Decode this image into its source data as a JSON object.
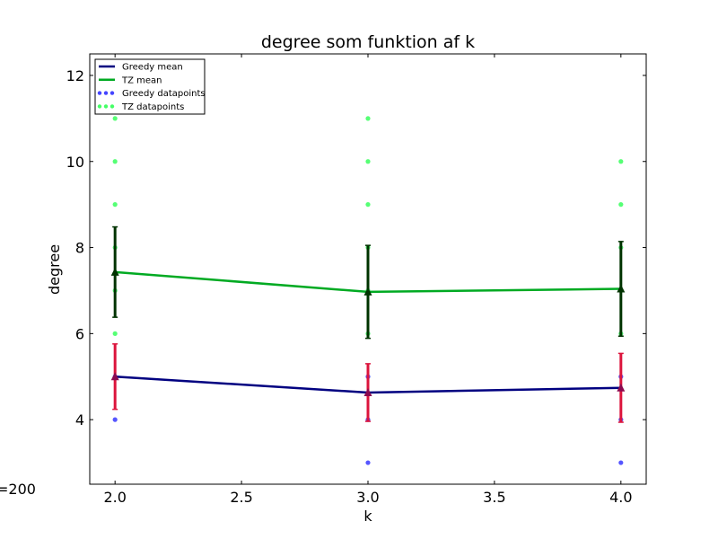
{
  "chart_data": {
    "type": "line",
    "title": "degree som funktion af k",
    "xlabel": "k",
    "ylabel": "degree",
    "xlim": [
      1.9,
      4.1
    ],
    "ylim": [
      2.5,
      12.5
    ],
    "xticks": [
      "2.0",
      "2.5",
      "3.0",
      "3.5",
      "4.0"
    ],
    "yticks": [
      "4",
      "6",
      "8",
      "10",
      "12"
    ],
    "grid": false,
    "legend_position": "top-left",
    "x": [
      2.0,
      3.0,
      4.0
    ],
    "series": [
      {
        "name": "Greedy mean",
        "kind": "mean",
        "color": "#000080",
        "values": [
          5.0,
          4.63,
          4.74
        ],
        "errors": [
          0.76,
          0.67,
          0.8
        ],
        "error_color": "#dc143c",
        "marker_color": "#8b0a50"
      },
      {
        "name": "TZ mean",
        "kind": "mean",
        "color": "#00aa22",
        "values": [
          7.43,
          6.97,
          7.04
        ],
        "errors": [
          1.05,
          1.08,
          1.1
        ],
        "error_color": "#003300",
        "marker_color": "#003300"
      },
      {
        "name": "Greedy datapoints",
        "kind": "scatter",
        "color": "#4444ff",
        "points": [
          [
            2,
            4
          ],
          [
            2,
            5
          ],
          [
            3,
            3
          ],
          [
            3,
            4
          ],
          [
            3,
            5
          ],
          [
            4,
            3
          ],
          [
            4,
            4
          ],
          [
            4,
            5
          ]
        ]
      },
      {
        "name": "TZ datapoints",
        "kind": "scatter",
        "color": "#44ff66",
        "points": [
          [
            2,
            6
          ],
          [
            2,
            7
          ],
          [
            2,
            8
          ],
          [
            2,
            9
          ],
          [
            2,
            10
          ],
          [
            2,
            11
          ],
          [
            3,
            6
          ],
          [
            3,
            7
          ],
          [
            3,
            8
          ],
          [
            3,
            9
          ],
          [
            3,
            10
          ],
          [
            3,
            11
          ],
          [
            4,
            6
          ],
          [
            4,
            7
          ],
          [
            4,
            8
          ],
          [
            4,
            9
          ],
          [
            4,
            10
          ]
        ]
      }
    ]
  },
  "corner_note": "=200"
}
